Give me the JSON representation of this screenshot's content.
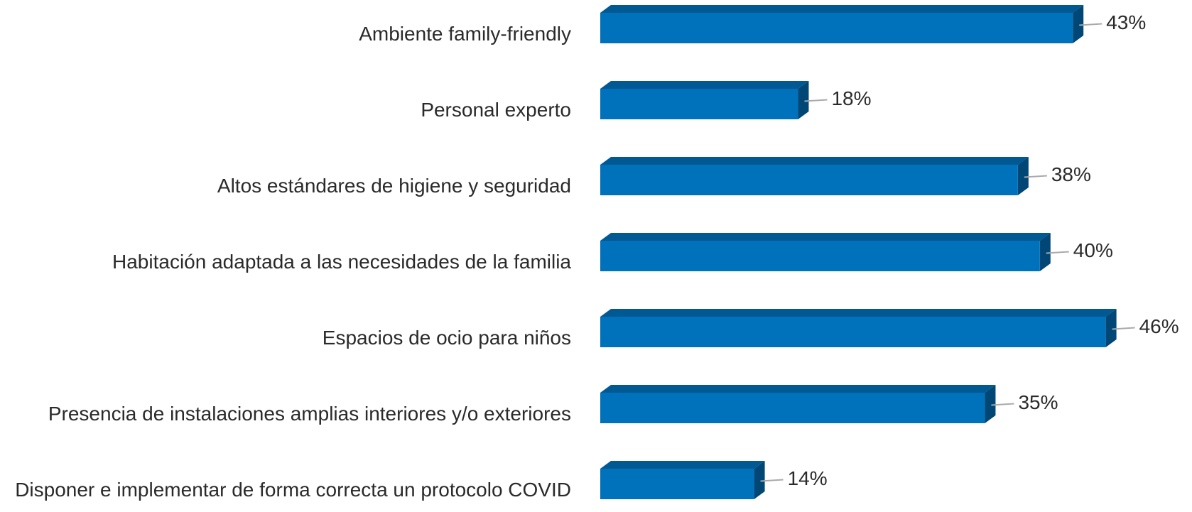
{
  "chart_data": {
    "type": "bar3d-horizontal",
    "categories": [
      "Ambiente family-friendly",
      "Personal experto",
      "Altos estándares de higiene y seguridad",
      "Habitación adaptada a las necesidades de la familia",
      "Espacios de ocio para niños",
      "Presencia de instalaciones amplias interiores y/o exteriores",
      "Disponer e implementar de forma correcta un protocolo COVID"
    ],
    "values": [
      43,
      18,
      38,
      40,
      46,
      35,
      14
    ],
    "value_labels": [
      "43%",
      "18%",
      "38%",
      "40%",
      "46%",
      "35%",
      "14%"
    ],
    "color": "#0072bc"
  }
}
